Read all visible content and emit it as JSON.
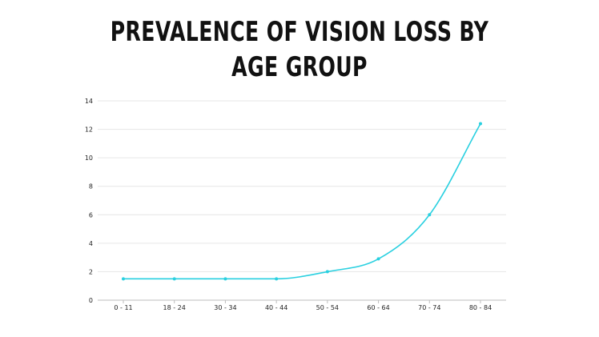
{
  "chart_data": {
    "type": "line",
    "title_lines": [
      "PREVALENCE OF VISION LOSS BY",
      "AGE GROUP"
    ],
    "categories": [
      "0 - 11",
      "18 - 24",
      "30 - 34",
      "40 - 44",
      "50 - 54",
      "60 - 64",
      "70 - 74",
      "80 - 84"
    ],
    "series": [
      {
        "values": [
          1.5,
          1.5,
          1.5,
          1.5,
          2.0,
          2.9,
          6.0,
          12.4
        ]
      }
    ],
    "ylim": [
      0,
      14
    ],
    "yticks": [
      0,
      2,
      4,
      6,
      8,
      10,
      12,
      14
    ],
    "grid": true,
    "legend": "none",
    "line_color": "#29d0e0",
    "grid_color": "#e6e6e6",
    "axis_color": "#bdbdbd"
  }
}
